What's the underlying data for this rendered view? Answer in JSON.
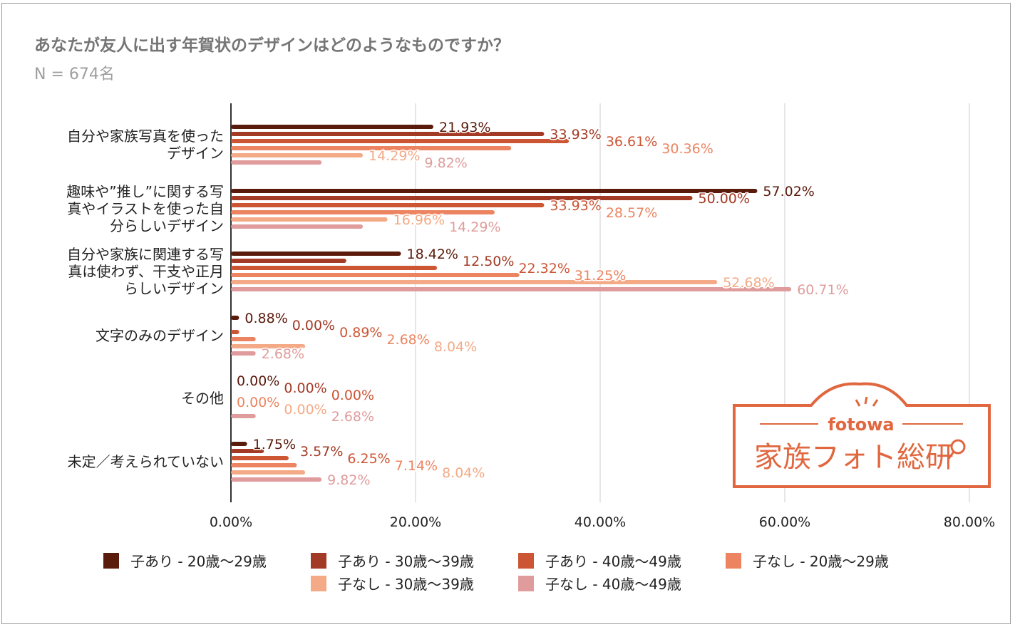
{
  "chart_data": {
    "type": "bar",
    "orientation": "horizontal",
    "title": "あなたが友人に出す年賀状のデザインはどのようなものですか？",
    "subtitle": "N = 674名",
    "categories": [
      "自分や家族写真を使った\nデザイン",
      "趣味や”推し”に関する写\n真やイラストを使った自\n分らしいデザイン",
      "自分や家族に関連する写\n真は使わず、干支や正月\nらしいデザイン",
      "文字のみのデザイン",
      "その他",
      "未定／考えられていない"
    ],
    "series": [
      {
        "name": "子あり - 20歳〜29歳",
        "color": "#5a1a0c",
        "values": [
          21.93,
          57.02,
          18.42,
          0.88,
          0.0,
          1.75
        ]
      },
      {
        "name": "子あり - 30歳〜39歳",
        "color": "#a33a25",
        "values": [
          33.93,
          50.0,
          12.5,
          0.0,
          0.0,
          3.57
        ]
      },
      {
        "name": "子あり - 40歳〜49歳",
        "color": "#cc5534",
        "values": [
          36.61,
          33.93,
          22.32,
          0.89,
          0.0,
          6.25
        ]
      },
      {
        "name": "子なし - 20歳〜29歳",
        "color": "#ec8461",
        "values": [
          30.36,
          28.57,
          31.25,
          2.68,
          0.0,
          7.14
        ]
      },
      {
        "name": "子なし - 30歳〜39歳",
        "color": "#f4aa86",
        "values": [
          14.29,
          16.96,
          52.68,
          8.04,
          0.0,
          8.04
        ]
      },
      {
        "name": "子なし - 40歳〜49歳",
        "color": "#e09c9c",
        "values": [
          9.82,
          14.29,
          60.71,
          2.68,
          2.68,
          9.82
        ]
      }
    ],
    "xlim": [
      0,
      80
    ],
    "xticks": [
      "0.00%",
      "20.00%",
      "40.00%",
      "60.00%",
      "80.00%"
    ],
    "grid": true,
    "legend": "bottom",
    "data_labels": true
  },
  "logo": {
    "brand": "fotowa",
    "name": "家族フォト総研",
    "color": "#e0673f"
  }
}
